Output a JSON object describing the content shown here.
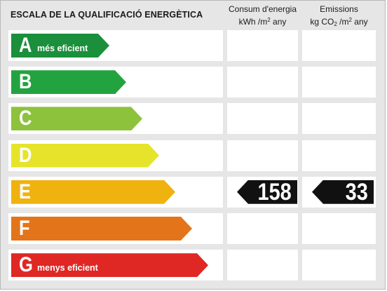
{
  "title": "ESCALA DE LA QUALIFICACIÓ ENERGÈTICA",
  "columns": {
    "consumption": {
      "line1": "Consum d'energia",
      "unit_prefix": "kWh /m",
      "unit_sup": "2",
      "unit_suffix": " any"
    },
    "emissions": {
      "line1": "Emissions",
      "unit_prefix": "kg CO",
      "unit_sub": "2",
      "unit_mid": " /m",
      "unit_sup": "2",
      "unit_suffix": " any"
    }
  },
  "ratings": [
    {
      "letter": "A",
      "sublabel": "més eficient",
      "color": "#1b8f3b"
    },
    {
      "letter": "B",
      "sublabel": "",
      "color": "#23a33f"
    },
    {
      "letter": "C",
      "sublabel": "",
      "color": "#8dc23c"
    },
    {
      "letter": "D",
      "sublabel": "",
      "color": "#e6e42a"
    },
    {
      "letter": "E",
      "sublabel": "",
      "color": "#efb20f"
    },
    {
      "letter": "F",
      "sublabel": "",
      "color": "#e4741a"
    },
    {
      "letter": "G",
      "sublabel": "menys eficient",
      "color": "#df2724"
    }
  ],
  "result": {
    "rating": "E",
    "consumption_value": "158",
    "emissions_value": "33"
  }
}
